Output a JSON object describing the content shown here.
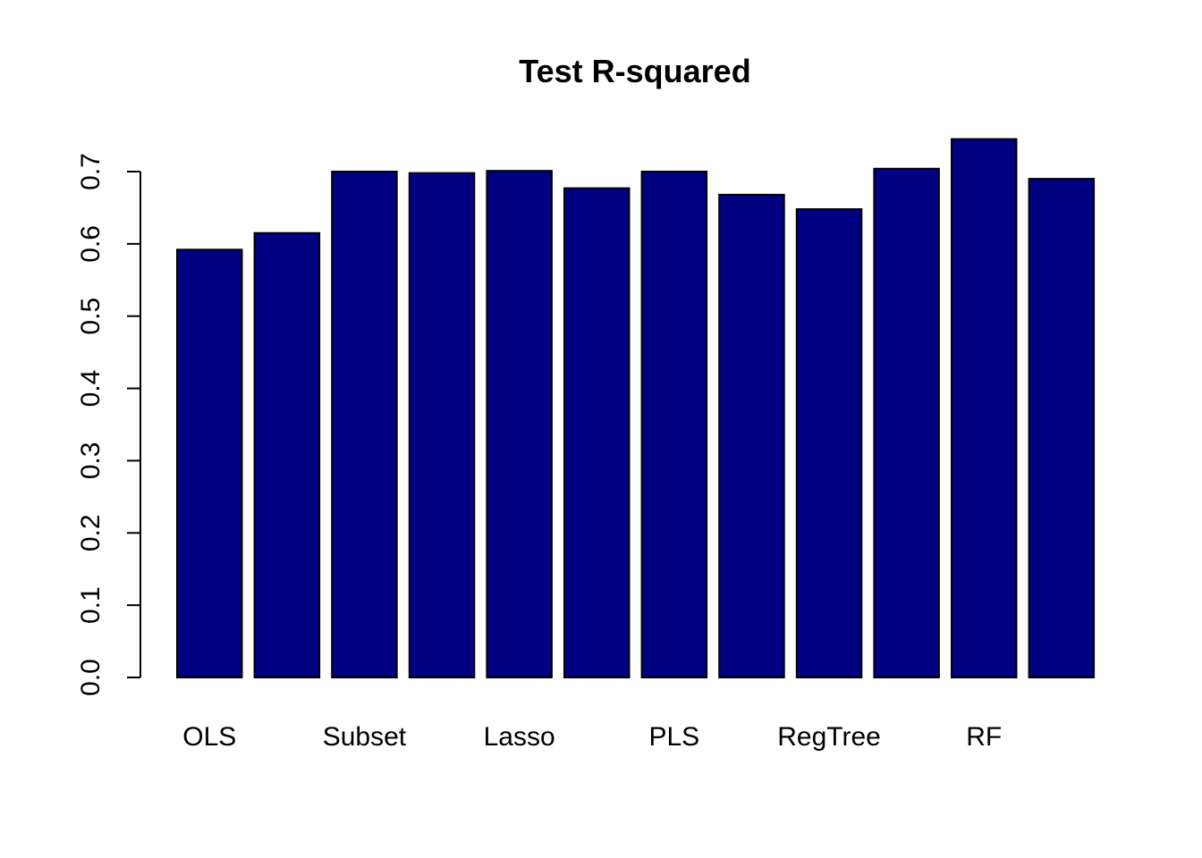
{
  "chart_data": {
    "type": "bar",
    "title": "Test R-squared",
    "xlabel": "",
    "ylabel": "",
    "categories": [
      "OLS",
      "",
      "Subset",
      "",
      "Lasso",
      "",
      "PLS",
      "",
      "RegTree",
      "",
      "RF",
      ""
    ],
    "values": [
      0.592,
      0.615,
      0.7,
      0.698,
      0.701,
      0.677,
      0.7,
      0.668,
      0.648,
      0.704,
      0.745,
      0.69
    ],
    "ylim": [
      0,
      0.7
    ],
    "yticks": [
      "0.0",
      "0.1",
      "0.2",
      "0.3",
      "0.4",
      "0.5",
      "0.6",
      "0.7"
    ],
    "bar_color": "#000080",
    "grid": false
  }
}
